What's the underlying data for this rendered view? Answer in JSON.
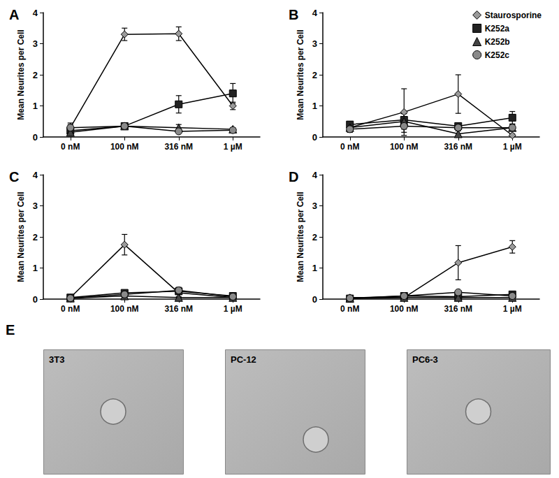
{
  "chart_data": [
    {
      "type": "line",
      "title": "A",
      "y_label": "Mean Neurites per Cell",
      "categories": [
        "0 nM",
        "100 nM",
        "316 nM",
        "1 µM"
      ],
      "ylim": [
        0,
        4
      ],
      "yticks": [
        0,
        1,
        2,
        3,
        4
      ],
      "grid": false,
      "series": [
        {
          "name": "Staurosporine",
          "color": "#9a9a9a",
          "marker": "diamond",
          "values": [
            0.3,
            3.3,
            3.32,
            1.0
          ],
          "errors": [
            0.15,
            0.2,
            0.22,
            0.12
          ]
        },
        {
          "name": "K252a",
          "color": "#222222",
          "marker": "square",
          "values": [
            0.2,
            0.35,
            1.05,
            1.4
          ],
          "errors": [
            0.1,
            0.1,
            0.28,
            0.32
          ]
        },
        {
          "name": "K252b",
          "color": "#444444",
          "marker": "triangle",
          "values": [
            0.15,
            0.35,
            0.3,
            0.25
          ],
          "errors": [
            0.1,
            0.1,
            0.1,
            0.05
          ]
        },
        {
          "name": "K252c",
          "color": "#8a8a8a",
          "marker": "circle",
          "values": [
            0.3,
            0.35,
            0.18,
            0.22
          ],
          "errors": [
            0.1,
            0.08,
            0.05,
            0.05
          ]
        }
      ]
    },
    {
      "type": "line",
      "title": "B",
      "y_label": "Mean Neurites per Cell",
      "categories": [
        "0 nM",
        "100 nM",
        "316 nM",
        "1 µM"
      ],
      "ylim": [
        0,
        4
      ],
      "yticks": [
        0,
        1,
        2,
        3,
        4
      ],
      "grid": false,
      "legend": "upper right",
      "series": [
        {
          "name": "Staurosporine",
          "color": "#9a9a9a",
          "marker": "diamond",
          "values": [
            0.3,
            0.8,
            1.38,
            0.05
          ],
          "errors": [
            0.15,
            0.75,
            0.62,
            0.05
          ]
        },
        {
          "name": "K252a",
          "color": "#222222",
          "marker": "square",
          "values": [
            0.4,
            0.55,
            0.35,
            0.62
          ],
          "errors": [
            0.1,
            0.2,
            0.1,
            0.2
          ]
        },
        {
          "name": "K252b",
          "color": "#444444",
          "marker": "triangle",
          "values": [
            0.3,
            0.5,
            0.1,
            0.3
          ],
          "errors": [
            0.1,
            0.25,
            0.1,
            0.1
          ]
        },
        {
          "name": "K252c",
          "color": "#8a8a8a",
          "marker": "circle",
          "values": [
            0.25,
            0.35,
            0.3,
            0.3
          ],
          "errors": [
            0.1,
            0.2,
            0.1,
            0.1
          ]
        }
      ]
    },
    {
      "type": "line",
      "title": "C",
      "y_label": "Mean Neurites per Cell",
      "categories": [
        "0 nM",
        "100 nM",
        "316 nM",
        "1 µM"
      ],
      "ylim": [
        0,
        4
      ],
      "yticks": [
        0,
        1,
        2,
        3,
        4
      ],
      "grid": false,
      "series": [
        {
          "name": "Staurosporine",
          "color": "#9a9a9a",
          "marker": "diamond",
          "values": [
            0.05,
            1.75,
            0.2,
            0.05
          ],
          "errors": [
            0.03,
            0.33,
            0.15,
            0.05
          ]
        },
        {
          "name": "K252a",
          "color": "#222222",
          "marker": "square",
          "values": [
            0.05,
            0.2,
            0.25,
            0.1
          ],
          "errors": [
            0.03,
            0.05,
            0.1,
            0.05
          ]
        },
        {
          "name": "K252b",
          "color": "#444444",
          "marker": "triangle",
          "values": [
            0.03,
            0.1,
            0.05,
            0.05
          ],
          "errors": [
            0.02,
            0.05,
            0.03,
            0.03
          ]
        },
        {
          "name": "K252c",
          "color": "#8a8a8a",
          "marker": "circle",
          "values": [
            0.03,
            0.15,
            0.28,
            0.08
          ],
          "errors": [
            0.02,
            0.05,
            0.1,
            0.05
          ]
        }
      ]
    },
    {
      "type": "line",
      "title": "D",
      "y_label": "Mean Neurites per Cell",
      "categories": [
        "0 nM",
        "100 nM",
        "316 nM",
        "1 µM"
      ],
      "ylim": [
        0,
        4
      ],
      "yticks": [
        0,
        1,
        2,
        3,
        4
      ],
      "grid": false,
      "series": [
        {
          "name": "Staurosporine",
          "color": "#9a9a9a",
          "marker": "diamond",
          "values": [
            0.05,
            0.05,
            1.17,
            1.68
          ],
          "errors": [
            0.03,
            0.05,
            0.55,
            0.2
          ]
        },
        {
          "name": "K252a",
          "color": "#222222",
          "marker": "square",
          "values": [
            0.02,
            0.1,
            0.08,
            0.15
          ],
          "errors": [
            0.02,
            0.05,
            0.05,
            0.05
          ]
        },
        {
          "name": "K252b",
          "color": "#444444",
          "marker": "triangle",
          "values": [
            0.02,
            0.05,
            0.05,
            0.05
          ],
          "errors": [
            0.02,
            0.03,
            0.03,
            0.03
          ]
        },
        {
          "name": "K252c",
          "color": "#8a8a8a",
          "marker": "circle",
          "values": [
            0.03,
            0.1,
            0.22,
            0.1
          ],
          "errors": [
            0.02,
            0.05,
            0.05,
            0.05
          ]
        }
      ]
    }
  ],
  "panel_E": {
    "title": "E",
    "images": [
      {
        "label": "3T3"
      },
      {
        "label": "PC-12"
      },
      {
        "label": "PC6-3"
      }
    ]
  }
}
